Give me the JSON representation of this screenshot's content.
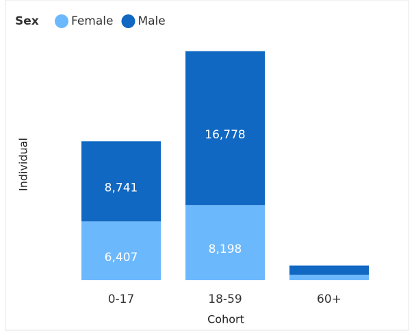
{
  "chart_data": {
    "type": "stacked_bar",
    "legend_title": "Sex",
    "x_label": "Cohort",
    "y_label": "Individual",
    "categories": [
      "0-17",
      "18-59",
      "60+"
    ],
    "series": [
      {
        "name": "Female",
        "color": "#6cb8fd",
        "values": [
          6407,
          8198,
          600
        ],
        "value_labels": [
          "6,407",
          "8,198",
          null
        ]
      },
      {
        "name": "Male",
        "color": "#1168c2",
        "values": [
          8741,
          16778,
          1000
        ],
        "value_labels": [
          "8,741",
          "16,778",
          null
        ]
      }
    ],
    "ylim": [
      0,
      26000
    ],
    "legend": "top-left"
  }
}
